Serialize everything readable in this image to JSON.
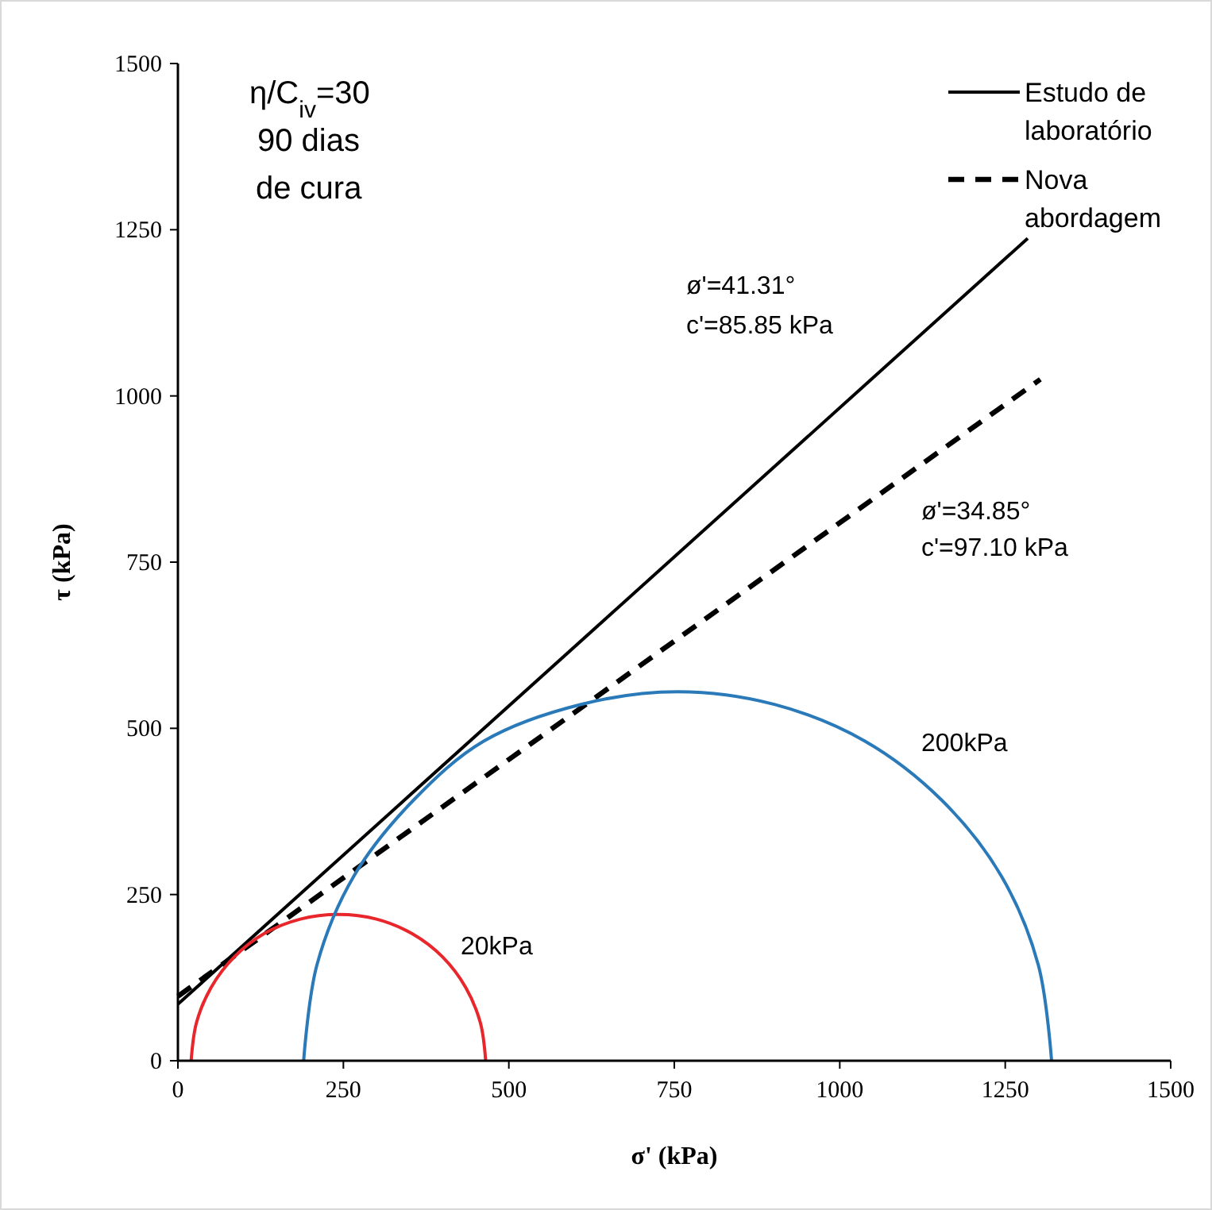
{
  "chart_data": {
    "type": "line",
    "xlabel": "σ' (kPa)",
    "ylabel": "τ (kPa)",
    "xlim": [
      0,
      1500
    ],
    "ylim": [
      0,
      1500
    ],
    "xticks": [
      0,
      250,
      500,
      750,
      1000,
      1250,
      1500
    ],
    "yticks": [
      0,
      250,
      500,
      750,
      1000,
      1250,
      1500
    ],
    "grid": false,
    "legend": "top right",
    "marker": "none",
    "series": [
      {
        "name": "Estudo de laboratório",
        "color": "#000000",
        "line_style": "solid",
        "x": [
          0,
          1284
        ],
        "values": [
          85,
          1237
        ]
      },
      {
        "name": "Nova abordagem",
        "color": "#000000",
        "line_style": "dashed",
        "x": [
          0,
          1303
        ],
        "values": [
          97,
          1025
        ]
      },
      {
        "color": "#e8262b",
        "line_style": "solid",
        "x": [
          465,
          457,
          435,
          400,
          354,
          300,
          242.5,
          185,
          130,
          85,
          50,
          28,
          20
        ],
        "values": [
          0,
          57,
          110,
          156,
          191,
          213,
          220,
          213,
          191,
          156,
          110,
          57,
          0
        ]
      },
      {
        "color": "#2a7ab9",
        "line_style": "solid",
        "x": [
          1320,
          1300,
          1244,
          1154,
          1037.5,
          901,
          755,
          609,
          462.5,
          356,
          266,
          210,
          190
        ],
        "values": [
          0,
          144,
          278,
          392,
          481,
          536,
          555,
          536,
          481,
          392,
          278,
          144,
          0
        ]
      }
    ],
    "annotations": [
      "η/C$_{iv}$=30",
      "90 dias",
      "de cura",
      "ø'=41.31°",
      "c'=85.85 kPa",
      "ø'=34.85°",
      "c'=97.10 kPa",
      "20kPa",
      "200kPa"
    ]
  }
}
